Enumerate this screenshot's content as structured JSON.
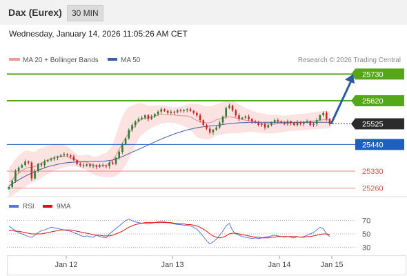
{
  "header": {
    "title": "Dax (Eurex)",
    "timeframe": "30 MIN",
    "datetime": "Wednesday, January 14, 2026 11:05:26 AM CET"
  },
  "legend": {
    "ma20_bb": "MA 20 + Bollinger Bands",
    "ma50": "MA 50",
    "credit": "Research © 2026 Trading Central",
    "rsi": "RSI",
    "rsi_ma": "9MA"
  },
  "colors": {
    "bullish": "#2e7d32",
    "bearish": "#c62828",
    "bollinger_fill": "#fde2e2",
    "ma20": "#e88a8a",
    "ma50": "#3b5ea8",
    "resistance": "#55a618",
    "pivot_line": "#1f5fbf",
    "support": "#f08080",
    "arrow": "#2b5aa0",
    "rsi": "#5577dd",
    "rsi_ma": "#dd1111"
  },
  "chart_data": [
    {
      "type": "candlestick",
      "ylim": [
        25225,
        25765
      ],
      "x_tick_labels": [
        "Jan 12",
        "Jan 13",
        "Jan 14",
        "Jan 15"
      ],
      "levels": [
        {
          "label": "25730",
          "value": 25730,
          "kind": "resistance"
        },
        {
          "label": "25620",
          "value": 25620,
          "kind": "resistance"
        },
        {
          "label": "25525",
          "value": 25525,
          "kind": "pivot"
        },
        {
          "label": "25440",
          "value": 25440,
          "kind": "support"
        },
        {
          "label": "25330",
          "value": 25330,
          "kind": "support"
        },
        {
          "label": "25260",
          "value": 25260,
          "kind": "support"
        }
      ],
      "forecast_arrow": {
        "from": 25525,
        "to": 25730
      },
      "closes": [
        25265,
        25290,
        25330,
        25345,
        25355,
        25370,
        25365,
        25300,
        25330,
        25360,
        25355,
        25370,
        25375,
        25380,
        25385,
        25390,
        25395,
        25400,
        25395,
        25390,
        25375,
        25360,
        25355,
        25352,
        25358,
        25350,
        25354,
        25348,
        25355,
        25352,
        25350,
        25365,
        25360,
        25385,
        25410,
        25440,
        25465,
        25500,
        25520,
        25535,
        25545,
        25550,
        25560,
        25545,
        25555,
        25565,
        25575,
        25585,
        25578,
        25570,
        25575,
        25572,
        25580,
        25578,
        25582,
        25585,
        25578,
        25570,
        25560,
        25540,
        25520,
        25505,
        25490,
        25500,
        25510,
        25530,
        25555,
        25590,
        25600,
        25580,
        25560,
        25545,
        25550,
        25555,
        25545,
        25535,
        25530,
        25520,
        25525,
        25510,
        25520,
        25530,
        25540,
        25535,
        25530,
        25525,
        25535,
        25528,
        25520,
        25532,
        25525,
        25530,
        25535,
        25520,
        25525,
        25540,
        25560,
        25570,
        25545,
        25525
      ],
      "bollinger": {
        "upper": [
          25345,
          25360,
          25380,
          25395,
          25405,
          25415,
          25415,
          25410,
          25410,
          25420,
          25425,
          25430,
          25435,
          25438,
          25440,
          25440,
          25440,
          25438,
          25432,
          25420,
          25410,
          25400,
          25395,
          25395,
          25400,
          25395,
          25390,
          25390,
          25395,
          25400,
          25405,
          25420,
          25440,
          25480,
          25520,
          25555,
          25580,
          25595,
          25600,
          25605,
          25610,
          25610,
          25605,
          25600,
          25600,
          25600,
          25602,
          25603,
          25600,
          25597,
          25595,
          25594,
          25594,
          25596,
          25600,
          25605,
          25608,
          25608,
          25607,
          25605,
          25600,
          25598,
          25597,
          25600,
          25605,
          25610,
          25615,
          25620,
          25622,
          25620,
          25612,
          25605,
          25598,
          25590,
          25585,
          25580,
          25575,
          25570,
          25568,
          25565,
          25563,
          25562,
          25562,
          25562,
          25560,
          25558,
          25560,
          25562,
          25563,
          25565,
          25566,
          25567,
          25568,
          25570,
          25572,
          25574,
          25576,
          25578,
          25578,
          25576
        ],
        "lower": [
          25225,
          25230,
          25238,
          25248,
          25258,
          25266,
          25275,
          25282,
          25288,
          25295,
          25303,
          25310,
          25318,
          25325,
          25332,
          25338,
          25342,
          25345,
          25348,
          25350,
          25350,
          25348,
          25345,
          25340,
          25335,
          25325,
          25318,
          25312,
          25308,
          25306,
          25305,
          25305,
          25306,
          25310,
          25320,
          25335,
          25355,
          25378,
          25405,
          25435,
          25462,
          25480,
          25490,
          25500,
          25508,
          25515,
          25520,
          25525,
          25528,
          25530,
          25530,
          25528,
          25525,
          25520,
          25515,
          25510,
          25500,
          25485,
          25470,
          25465,
          25462,
          25460,
          25462,
          25468,
          25478,
          25480,
          25482,
          25484,
          25485,
          25486,
          25486,
          25487,
          25488,
          25490,
          25492,
          25492,
          25490,
          25488,
          25487,
          25486,
          25485,
          25485,
          25486,
          25488,
          25490,
          25492,
          25494,
          25495,
          25496,
          25497,
          25498,
          25499,
          25500,
          25501,
          25502,
          25503,
          25504,
          25505,
          25506,
          25506
        ]
      },
      "ma50": [
        25270,
        25278,
        25286,
        25294,
        25302,
        25309,
        25316,
        25322,
        25328,
        25334,
        25339,
        25344,
        25348,
        25352,
        25355,
        25358,
        25361,
        25363,
        25365,
        25366,
        25367,
        25368,
        25368,
        25369,
        25369,
        25370,
        25370,
        25370,
        25371,
        25371,
        25372,
        25374,
        25376,
        25380,
        25385,
        25390,
        25396,
        25402,
        25408,
        25414,
        25420,
        25426,
        25432,
        25438,
        25444,
        25450,
        25456,
        25462,
        25468,
        25473,
        25478,
        25483,
        25488,
        25492,
        25496,
        25500,
        25503,
        25506,
        25509,
        25511,
        25513,
        25515,
        25516,
        25517,
        25518,
        25520,
        25522,
        25524,
        25526,
        25527,
        25528,
        25529,
        25530,
        25530,
        25531,
        25531,
        25531,
        25531,
        25531,
        25531,
        25531,
        25531,
        25531,
        25531,
        25531,
        25531,
        25531,
        25531,
        25531,
        25531,
        25531,
        25531,
        25531,
        25531,
        25531,
        25531,
        25531,
        25531,
        25531,
        25531
      ]
    },
    {
      "type": "line",
      "ylim": [
        20,
        80
      ],
      "y_tick_labels": [
        "70",
        "50",
        "30"
      ],
      "y_ticks": [
        70,
        50,
        30
      ],
      "series": [
        {
          "name": "RSI",
          "values": [
            62,
            58,
            55,
            52,
            50,
            48,
            46,
            45,
            48,
            52,
            55,
            56,
            58,
            60,
            59,
            58,
            57,
            56,
            55,
            54,
            52,
            50,
            48,
            46,
            47,
            46,
            45,
            48,
            46,
            45,
            44,
            50,
            54,
            58,
            62,
            66,
            70,
            72,
            70,
            68,
            67,
            66,
            66,
            65,
            66,
            67,
            68,
            69,
            68,
            67,
            66,
            65,
            64,
            64,
            63,
            63,
            62,
            60,
            57,
            52,
            46,
            40,
            35,
            38,
            42,
            48,
            54,
            62,
            66,
            55,
            50,
            48,
            46,
            45,
            44,
            43,
            44,
            43,
            44,
            45,
            46,
            47,
            48,
            47,
            46,
            45,
            46,
            45,
            44,
            46,
            45,
            46,
            48,
            50,
            52,
            56,
            60,
            58,
            50,
            46
          ]
        },
        {
          "name": "9MA",
          "values": [
            55,
            55,
            54,
            54,
            53,
            52,
            51,
            50,
            50,
            50,
            50,
            51,
            52,
            53,
            54,
            55,
            56,
            56,
            56,
            56,
            55,
            54,
            53,
            52,
            51,
            50,
            49,
            48,
            48,
            47,
            47,
            47,
            48,
            50,
            52,
            54,
            57,
            60,
            62,
            64,
            65,
            66,
            67,
            67,
            67,
            67,
            67,
            67,
            67,
            67,
            67,
            66,
            66,
            65,
            65,
            64,
            64,
            63,
            62,
            60,
            57,
            54,
            50,
            47,
            45,
            44,
            45,
            47,
            50,
            51,
            51,
            50,
            49,
            48,
            47,
            46,
            45,
            45,
            44,
            44,
            44,
            45,
            45,
            46,
            46,
            46,
            46,
            46,
            46,
            46,
            45,
            45,
            46,
            46,
            47,
            48,
            49,
            50,
            50,
            49
          ]
        }
      ]
    }
  ]
}
